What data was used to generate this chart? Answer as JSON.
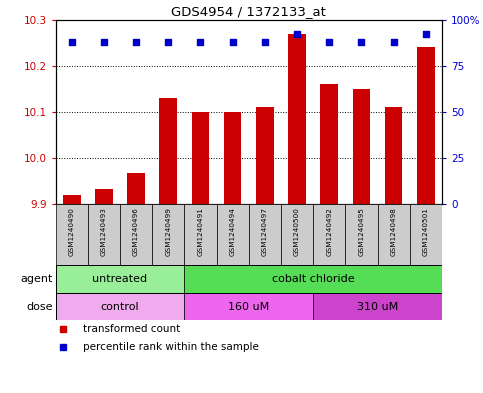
{
  "title": "GDS4954 / 1372133_at",
  "samples": [
    "GSM1240490",
    "GSM1240493",
    "GSM1240496",
    "GSM1240499",
    "GSM1240491",
    "GSM1240494",
    "GSM1240497",
    "GSM1240500",
    "GSM1240492",
    "GSM1240495",
    "GSM1240498",
    "GSM1240501"
  ],
  "bar_values": [
    9.921,
    9.934,
    9.967,
    10.13,
    10.1,
    10.1,
    10.11,
    10.27,
    10.16,
    10.15,
    10.11,
    10.24
  ],
  "percentile_values": [
    88,
    88,
    88,
    88,
    88,
    88,
    88,
    92,
    88,
    88,
    88,
    92
  ],
  "bar_color": "#cc0000",
  "dot_color": "#0000cc",
  "ylim_left": [
    9.9,
    10.3
  ],
  "ylim_right": [
    0,
    100
  ],
  "yticks_left": [
    9.9,
    10.0,
    10.1,
    10.2,
    10.3
  ],
  "yticks_right": [
    0,
    25,
    50,
    75,
    100
  ],
  "ytick_labels_right": [
    "0",
    "25",
    "50",
    "75",
    "100%"
  ],
  "agent_groups": [
    {
      "label": "untreated",
      "start": 0,
      "end": 4,
      "color": "#99ee99"
    },
    {
      "label": "cobalt chloride",
      "start": 4,
      "end": 12,
      "color": "#55dd55"
    }
  ],
  "dose_groups": [
    {
      "label": "control",
      "start": 0,
      "end": 4,
      "color": "#f0aaee"
    },
    {
      "label": "160 uM",
      "start": 4,
      "end": 8,
      "color": "#ee66ee"
    },
    {
      "label": "310 uM",
      "start": 8,
      "end": 12,
      "color": "#cc44cc"
    }
  ],
  "legend_items": [
    {
      "label": "transformed count",
      "color": "#cc0000"
    },
    {
      "label": "percentile rank within the sample",
      "color": "#0000cc"
    }
  ],
  "sample_box_color": "#cccccc"
}
